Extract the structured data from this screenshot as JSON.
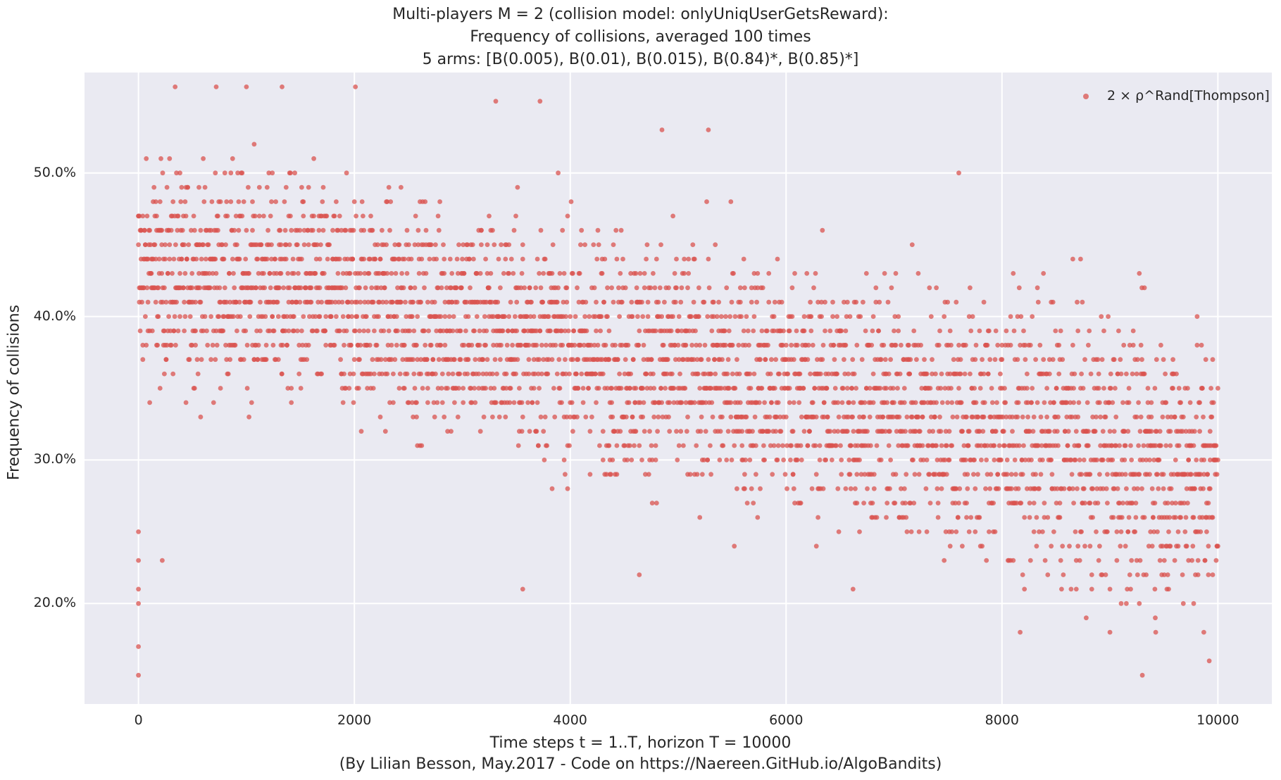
{
  "title_lines": [
    "Multi-players M = 2 (collision model: onlyUniqUserGetsReward):",
    "Frequency of collisions, averaged 100 times",
    "5 arms: [B(0.005), B(0.01), B(0.015), B(0.84)*, B(0.85)*]"
  ],
  "xlabel": "Time steps t = 1..T, horizon T = 10000",
  "footer": "(By Lilian Besson, May.2017 - Code on https://Naereen.GitHub.io/AlgoBandits)",
  "ylabel": "Frequency of collisions",
  "legend_label": "2 × ρ^Rand[Thompson]",
  "colors": {
    "background": "#EAEAF2",
    "grid": "#FFFFFF",
    "marker": "#D9534F"
  },
  "chart_data": {
    "type": "scatter",
    "title": "Multi-players M = 2 (collision model: onlyUniqUserGetsReward): Frequency of collisions, averaged 100 times — 5 arms: [B(0.005), B(0.01), B(0.015), B(0.84)*, B(0.85)*]",
    "xlabel": "Time steps t = 1..T, horizon T = 10000",
    "ylabel": "Frequency of collisions",
    "xlim": [
      -500,
      10500
    ],
    "ylim": [
      0.13,
      0.57
    ],
    "xticks": [
      0,
      2000,
      4000,
      6000,
      8000,
      10000
    ],
    "xtick_labels": [
      "0",
      "2000",
      "4000",
      "6000",
      "8000",
      "10000"
    ],
    "yticks": [
      0.2,
      0.3,
      0.4,
      0.5
    ],
    "ytick_labels": [
      "20.0%",
      "30.0%",
      "40.0%",
      "50.0%"
    ],
    "grid": true,
    "legend_position": "top-right",
    "series": [
      {
        "name": "2 × ρ^Rand[Thompson]",
        "color": "#D9534F",
        "trend_description": "dense band of points; centre near 0.42 at t=0 decreasing to about 0.29 at t=10000",
        "trend_x": [
          0,
          1000,
          2000,
          3000,
          4000,
          5000,
          6000,
          7000,
          8000,
          9000,
          10000
        ],
        "trend_y": [
          0.43,
          0.425,
          0.41,
          0.395,
          0.38,
          0.365,
          0.35,
          0.335,
          0.32,
          0.305,
          0.29
        ],
        "outliers": [
          [
            0,
            0.15
          ],
          [
            0,
            0.17
          ],
          [
            0,
            0.2
          ],
          [
            0,
            0.21
          ],
          [
            0,
            0.23
          ],
          [
            0,
            0.25
          ],
          [
            220,
            0.23
          ],
          [
            340,
            0.56
          ],
          [
            720,
            0.56
          ],
          [
            1000,
            0.56
          ],
          [
            1330,
            0.56
          ],
          [
            2010,
            0.56
          ],
          [
            3310,
            0.55
          ],
          [
            3720,
            0.55
          ],
          [
            4850,
            0.53
          ],
          [
            5280,
            0.53
          ],
          [
            3560,
            0.21
          ],
          [
            4640,
            0.22
          ],
          [
            6620,
            0.21
          ],
          [
            7600,
            0.5
          ],
          [
            8780,
            0.19
          ],
          [
            9000,
            0.18
          ],
          [
            9300,
            0.15
          ],
          [
            9420,
            0.19
          ],
          [
            9870,
            0.18
          ],
          [
            9920,
            0.16
          ]
        ]
      }
    ]
  }
}
